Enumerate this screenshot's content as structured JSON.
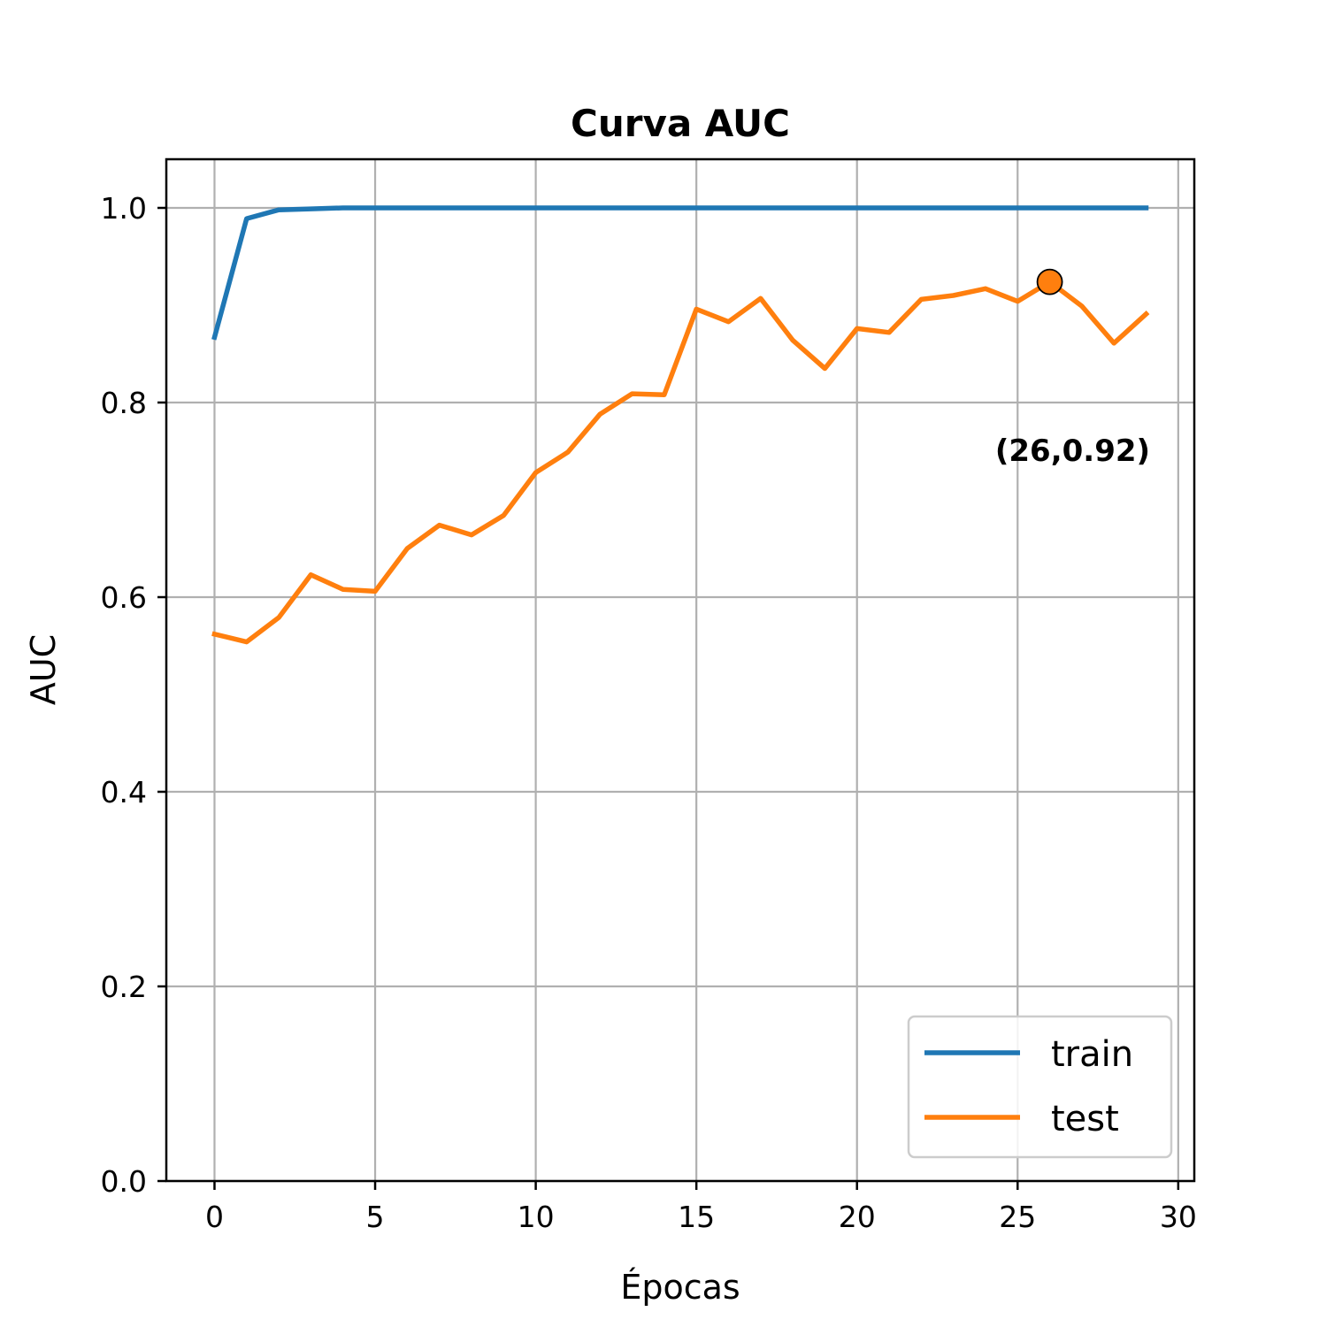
{
  "chart_data": {
    "type": "line",
    "title": "Curva AUC",
    "xlabel": "Épocas",
    "ylabel": "AUC",
    "xlim": [
      -1.5,
      30.5
    ],
    "ylim": [
      0.0,
      1.05
    ],
    "xticks": [
      0,
      5,
      10,
      15,
      20,
      25,
      30
    ],
    "yticks": [
      0.0,
      0.2,
      0.4,
      0.6,
      0.8,
      1.0
    ],
    "xtick_labels": [
      "0",
      "5",
      "10",
      "15",
      "20",
      "25",
      "30"
    ],
    "ytick_labels": [
      "0.0",
      "0.2",
      "0.4",
      "0.6",
      "0.8",
      "1.0"
    ],
    "grid": true,
    "legend_position": "lower-right",
    "x": [
      0,
      1,
      2,
      3,
      4,
      5,
      6,
      7,
      8,
      9,
      10,
      11,
      12,
      13,
      14,
      15,
      16,
      17,
      18,
      19,
      20,
      21,
      22,
      23,
      24,
      25,
      26,
      27,
      28,
      29
    ],
    "series": [
      {
        "name": "train",
        "color": "#1f77b4",
        "values": [
          0.867,
          0.989,
          0.998,
          0.999,
          1.0,
          1.0,
          1.0,
          1.0,
          1.0,
          1.0,
          1.0,
          1.0,
          1.0,
          1.0,
          1.0,
          1.0,
          1.0,
          1.0,
          1.0,
          1.0,
          1.0,
          1.0,
          1.0,
          1.0,
          1.0,
          1.0,
          1.0,
          1.0,
          1.0,
          1.0
        ]
      },
      {
        "name": "test",
        "color": "#ff7f0e",
        "values": [
          0.562,
          0.554,
          0.579,
          0.623,
          0.608,
          0.606,
          0.65,
          0.674,
          0.664,
          0.684,
          0.728,
          0.749,
          0.788,
          0.809,
          0.808,
          0.896,
          0.883,
          0.907,
          0.864,
          0.835,
          0.876,
          0.872,
          0.906,
          0.91,
          0.917,
          0.904,
          0.924,
          0.899,
          0.861,
          0.891
        ]
      }
    ],
    "highlight_point": {
      "x": 26,
      "y": 0.924,
      "color": "#ff7f0e"
    },
    "annotation": {
      "text": "(26,0.92)",
      "x": 24.3,
      "y": 0.74
    }
  }
}
